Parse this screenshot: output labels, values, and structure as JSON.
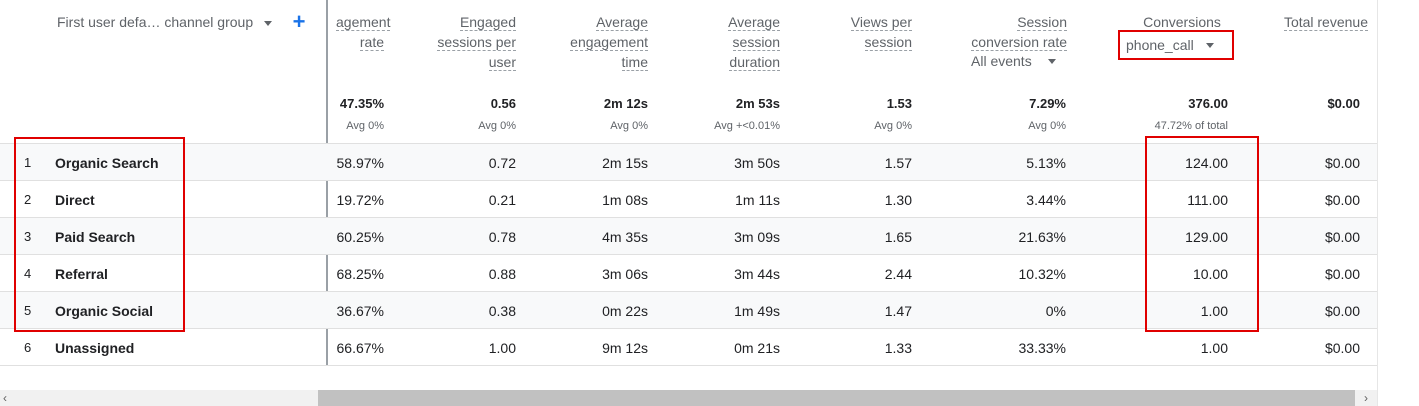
{
  "dimension": {
    "header": "First user defa… channel group",
    "add_icon": "plus-icon",
    "caret_icon": "caret-down-icon"
  },
  "metrics": [
    {
      "key": "engagement_rate",
      "lines": [
        "agement",
        "rate"
      ]
    },
    {
      "key": "engaged_sessions_per_user",
      "lines": [
        "Engaged",
        "sessions per",
        "user"
      ]
    },
    {
      "key": "avg_engagement_time",
      "lines": [
        "Average",
        "engagement",
        "time"
      ]
    },
    {
      "key": "avg_session_duration",
      "lines": [
        "Average",
        "session",
        "duration"
      ]
    },
    {
      "key": "views_per_session",
      "lines": [
        "Views per",
        "session"
      ]
    },
    {
      "key": "session_conversion_rate",
      "lines": [
        "Session",
        "conversion rate"
      ],
      "selector": "All events"
    },
    {
      "key": "conversions",
      "lines": [
        "Conversions"
      ],
      "selector": "phone_call"
    },
    {
      "key": "total_revenue",
      "lines": [
        "Total revenue"
      ]
    }
  ],
  "totals": {
    "values": [
      "47.35%",
      "0.56",
      "2m 12s",
      "2m 53s",
      "1.53",
      "7.29%",
      "376.00",
      "$0.00"
    ],
    "subs": [
      "Avg 0%",
      "Avg 0%",
      "Avg 0%",
      "Avg +<0.01%",
      "Avg 0%",
      "Avg 0%",
      "47.72% of total",
      ""
    ]
  },
  "rows": [
    {
      "num": "1",
      "channel": "Organic Search",
      "cells": [
        "58.97%",
        "0.72",
        "2m 15s",
        "3m 50s",
        "1.57",
        "5.13%",
        "124.00",
        "$0.00"
      ]
    },
    {
      "num": "2",
      "channel": "Direct",
      "cells": [
        "19.72%",
        "0.21",
        "1m 08s",
        "1m 11s",
        "1.30",
        "3.44%",
        "111.00",
        "$0.00"
      ]
    },
    {
      "num": "3",
      "channel": "Paid Search",
      "cells": [
        "60.25%",
        "0.78",
        "4m 35s",
        "3m 09s",
        "1.65",
        "21.63%",
        "129.00",
        "$0.00"
      ]
    },
    {
      "num": "4",
      "channel": "Referral",
      "cells": [
        "68.25%",
        "0.88",
        "3m 06s",
        "3m 44s",
        "2.44",
        "10.32%",
        "10.00",
        "$0.00"
      ]
    },
    {
      "num": "5",
      "channel": "Organic Social",
      "cells": [
        "36.67%",
        "0.38",
        "0m 22s",
        "1m 49s",
        "1.47",
        "0%",
        "1.00",
        "$0.00"
      ]
    },
    {
      "num": "6",
      "channel": "Unassigned",
      "cells": [
        "66.67%",
        "1.00",
        "9m 12s",
        "0m 21s",
        "1.33",
        "33.33%",
        "1.00",
        "$0.00"
      ]
    }
  ],
  "colors": {
    "highlight": "#e00000",
    "accent": "#1a73e8",
    "text": "#202124",
    "muted": "#5f6368",
    "row_shade": "#f8f9fa"
  },
  "scroll": {
    "left_arrow": "scroll-left-icon",
    "right_arrow": "scroll-right-icon"
  }
}
